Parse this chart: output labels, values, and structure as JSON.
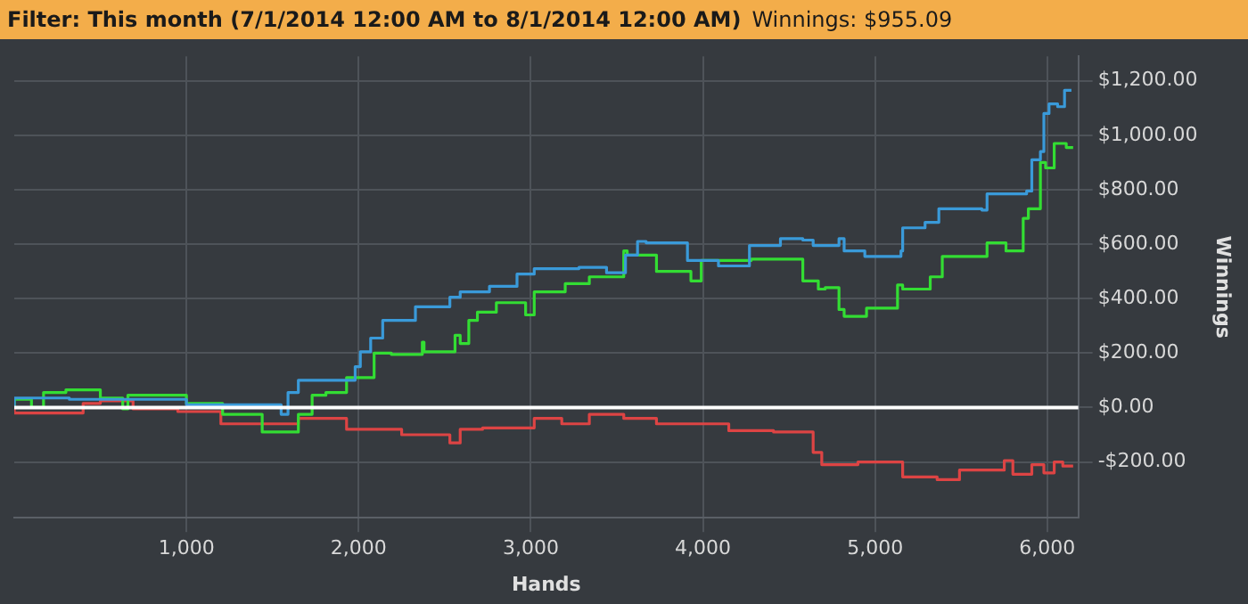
{
  "chart_data": {
    "type": "step",
    "title": "Filter: This month (7/1/2014 12:00 AM to 8/1/2014 12:00 AM)",
    "subtitle": "Winnings: $955.09",
    "xlabel": "Hands",
    "ylabel": "Winnings",
    "xlim": [
      0,
      6180
    ],
    "ylim": [
      -405,
      1290
    ],
    "xticks": [
      {
        "value": 1000,
        "label": "1,000"
      },
      {
        "value": 2000,
        "label": "2,000"
      },
      {
        "value": 3000,
        "label": "3,000"
      },
      {
        "value": 4000,
        "label": "4,000"
      },
      {
        "value": 5000,
        "label": "5,000"
      },
      {
        "value": 6000,
        "label": "6,000"
      }
    ],
    "yticks": [
      {
        "value": -200,
        "label": "-$200.00"
      },
      {
        "value": 0,
        "label": "$0.00"
      },
      {
        "value": 200,
        "label": "$200.00"
      },
      {
        "value": 400,
        "label": "$400.00"
      },
      {
        "value": 600,
        "label": "$600.00"
      },
      {
        "value": 800,
        "label": "$800.00"
      },
      {
        "value": 1000,
        "label": "$1,000.00"
      },
      {
        "value": 1200,
        "label": "$1,200.00"
      }
    ],
    "grid": true,
    "legend": false,
    "marker": "none",
    "line_style": "solid",
    "ref_lines": [
      {
        "axis": "y",
        "value": 0,
        "color": "#ffffff"
      }
    ],
    "series": [
      {
        "color": "#3a9ad9",
        "x": [
          0,
          320,
          1000,
          1200,
          1550,
          1590,
          1650,
          1750,
          1980,
          2010,
          2070,
          2140,
          2330,
          2530,
          2590,
          2760,
          2920,
          3020,
          3280,
          3340,
          3440,
          3550,
          3620,
          3670,
          3910,
          4090,
          4270,
          4450,
          4580,
          4640,
          4790,
          4820,
          4940,
          5150,
          5160,
          5290,
          5370,
          5620,
          5650,
          5880,
          5910,
          5960,
          5980,
          6010,
          6060,
          6100,
          6140
        ],
        "values": [
          0,
          35,
          30,
          10,
          10,
          -25,
          55,
          100,
          100,
          150,
          205,
          255,
          320,
          370,
          405,
          425,
          445,
          490,
          510,
          515,
          515,
          495,
          560,
          610,
          605,
          540,
          520,
          595,
          620,
          615,
          595,
          620,
          575,
          555,
          575,
          660,
          680,
          730,
          725,
          785,
          795,
          910,
          940,
          1080,
          1115,
          1105,
          1165
        ]
      },
      {
        "color": "#33dd33",
        "x": [
          0,
          100,
          170,
          300,
          500,
          630,
          660,
          720,
          1000,
          1210,
          1440,
          1650,
          1730,
          1810,
          1930,
          2090,
          2190,
          2370,
          2380,
          2560,
          2590,
          2640,
          2690,
          2800,
          2970,
          3020,
          3200,
          3340,
          3540,
          3560,
          3730,
          3930,
          3990,
          4280,
          4580,
          4670,
          4710,
          4790,
          4820,
          4950,
          5130,
          5160,
          5320,
          5390,
          5650,
          5760,
          5860,
          5890,
          5960,
          5990,
          6040,
          6110,
          6150
        ],
        "values": [
          0,
          30,
          0,
          55,
          65,
          35,
          -5,
          45,
          45,
          15,
          -25,
          -90,
          -25,
          45,
          55,
          110,
          200,
          195,
          240,
          205,
          265,
          235,
          320,
          350,
          385,
          340,
          425,
          455,
          480,
          575,
          560,
          500,
          465,
          540,
          545,
          465,
          435,
          440,
          360,
          335,
          365,
          450,
          435,
          480,
          555,
          605,
          575,
          695,
          730,
          900,
          880,
          970,
          955
        ]
      },
      {
        "color": "#dd4444",
        "x": [
          0,
          400,
          500,
          690,
          950,
          1200,
          1440,
          1650,
          1930,
          2250,
          2530,
          2590,
          2720,
          3020,
          3180,
          3340,
          3540,
          3730,
          4150,
          4410,
          4640,
          4690,
          4900,
          5160,
          5360,
          5490,
          5750,
          5800,
          5910,
          5980,
          6040,
          6090,
          6150
        ],
        "values": [
          0,
          -20,
          15,
          25,
          -5,
          -15,
          -60,
          -60,
          -40,
          -80,
          -100,
          -130,
          -80,
          -75,
          -40,
          -60,
          -25,
          -40,
          -60,
          -85,
          -90,
          -165,
          -210,
          -200,
          -255,
          -265,
          -230,
          -195,
          -245,
          -210,
          -240,
          -200,
          -215
        ]
      }
    ]
  }
}
